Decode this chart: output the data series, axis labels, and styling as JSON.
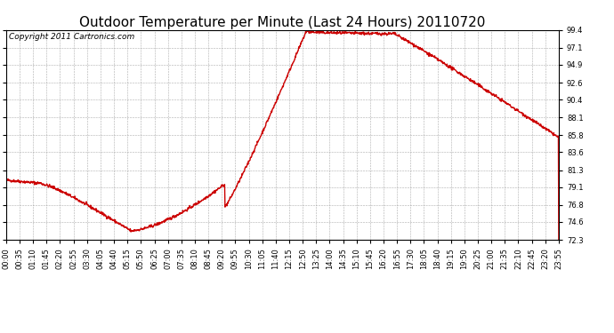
{
  "title": "Outdoor Temperature per Minute (Last 24 Hours) 20110720",
  "copyright_text": "Copyright 2011 Cartronics.com",
  "line_color": "#cc0000",
  "background_color": "#ffffff",
  "plot_bg_color": "#ffffff",
  "grid_color": "#999999",
  "yticks": [
    72.3,
    74.6,
    76.8,
    79.1,
    81.3,
    83.6,
    85.8,
    88.1,
    90.4,
    92.6,
    94.9,
    97.1,
    99.4
  ],
  "ylim": [
    72.3,
    99.4
  ],
  "xtick_labels": [
    "00:00",
    "00:35",
    "01:10",
    "01:45",
    "02:20",
    "02:55",
    "03:30",
    "04:05",
    "04:40",
    "05:15",
    "05:50",
    "06:25",
    "07:00",
    "07:35",
    "08:10",
    "08:45",
    "09:20",
    "09:55",
    "10:30",
    "11:05",
    "11:40",
    "12:15",
    "12:50",
    "13:25",
    "14:00",
    "14:35",
    "15:10",
    "15:45",
    "16:20",
    "16:55",
    "17:30",
    "18:05",
    "18:40",
    "19:15",
    "19:50",
    "20:25",
    "21:00",
    "21:35",
    "22:10",
    "22:45",
    "23:20",
    "23:55"
  ],
  "title_fontsize": 11,
  "copyright_fontsize": 6.5,
  "tick_fontsize": 6,
  "line_width": 1.0
}
